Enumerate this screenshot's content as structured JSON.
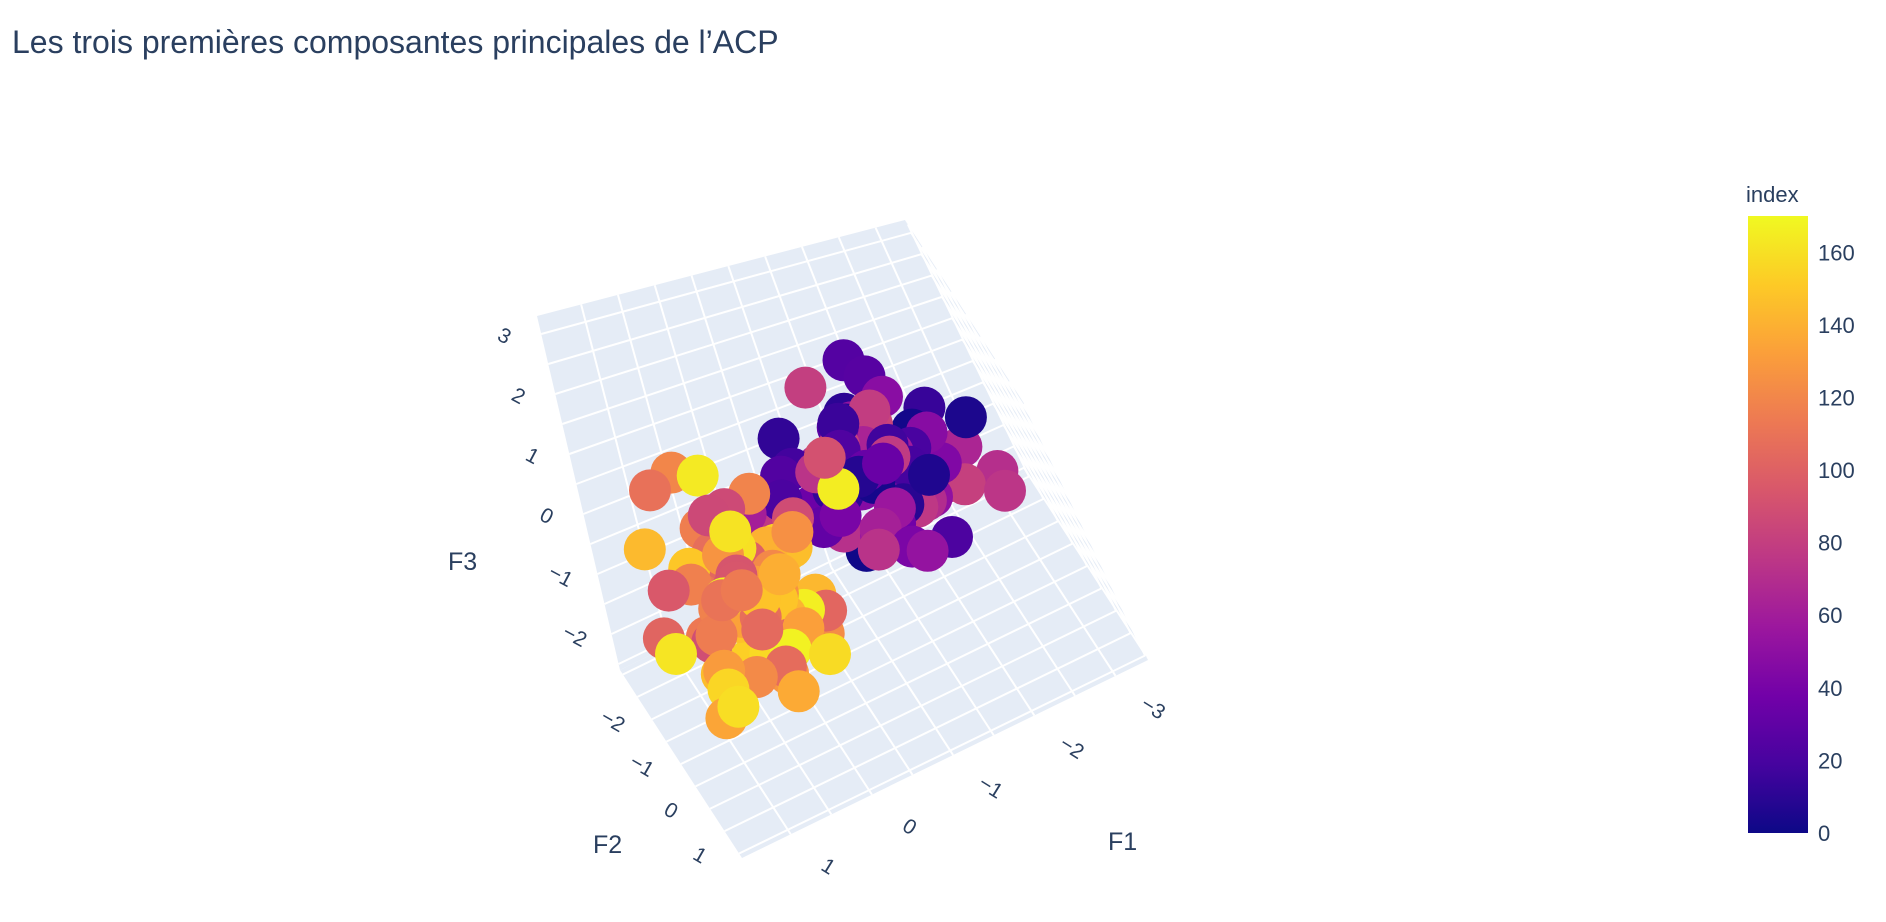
{
  "chart_data": {
    "type": "scatter3d",
    "title": "Les trois premières composantes principales de l’ACP",
    "axes": {
      "x": {
        "title": "F1",
        "ticks": [
          "−3",
          "−2",
          "−1",
          "0",
          "1"
        ],
        "range": [
          -3.4,
          1.6
        ]
      },
      "y": {
        "title": "F2",
        "ticks": [
          "−2",
          "−1",
          "0",
          "1"
        ],
        "range": [
          -2.6,
          1.6
        ]
      },
      "z": {
        "title": "F3",
        "ticks": [
          "−2",
          "−1",
          "0",
          "1",
          "2",
          "3"
        ],
        "range": [
          -2.6,
          3.3
        ]
      }
    },
    "colorbar": {
      "title": "index",
      "range": [
        0,
        170
      ],
      "ticks": [
        "0",
        "20",
        "40",
        "60",
        "80",
        "100",
        "120",
        "140",
        "160"
      ],
      "tick_values": [
        0,
        20,
        40,
        60,
        80,
        100,
        120,
        140,
        160
      ]
    },
    "colorscale": [
      "#0d0887",
      "#46039f",
      "#7201a8",
      "#9c179e",
      "#bd3786",
      "#d8576b",
      "#ed7953",
      "#fb9f3a",
      "#fdca26",
      "#f0f921"
    ],
    "background_color": "#e5ecf6",
    "grid_color": "#ffffff"
  }
}
